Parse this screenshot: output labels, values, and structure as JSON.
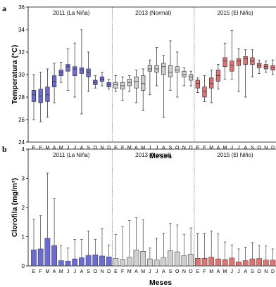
{
  "chart_data": [
    {
      "type": "boxplot",
      "panel": "a",
      "ylabel": "Temperatura (°C)",
      "xlabel": "Meses",
      "ylim": [
        24,
        36
      ],
      "yticks": [
        24,
        26,
        28,
        30,
        32,
        34,
        36
      ],
      "periods": [
        "2011 (La Niña)",
        "2013 (Normal)",
        "2015 (El Niño)"
      ],
      "colors": [
        "#6b6bd6",
        "#cfcfcf",
        "#e07272"
      ],
      "categories": [
        "E",
        "F",
        "M",
        "A",
        "M",
        "J",
        "J",
        "A",
        "S",
        "O",
        "N",
        "D",
        "E",
        "F",
        "M",
        "A",
        "M",
        "J",
        "J",
        "A",
        "S",
        "O",
        "N",
        "D",
        "E",
        "F",
        "M",
        "A",
        "M",
        "J",
        "J",
        "A",
        "S",
        "O",
        "N",
        "D"
      ],
      "boxes": [
        [
          26.0,
          27.6,
          28.2,
          28.6,
          30.0
        ],
        [
          25.8,
          27.5,
          28.1,
          28.7,
          30.2
        ],
        [
          26.2,
          27.6,
          28.2,
          28.9,
          30.5
        ],
        [
          27.5,
          28.9,
          29.4,
          29.9,
          31.0
        ],
        [
          29.3,
          29.9,
          30.2,
          30.4,
          31.1
        ],
        [
          28.6,
          30.3,
          30.7,
          30.9,
          32.3
        ],
        [
          28.0,
          29.9,
          30.5,
          30.7,
          32.8
        ],
        [
          26.5,
          30.1,
          30.4,
          30.6,
          34.0
        ],
        [
          28.5,
          29.8,
          30.2,
          30.5,
          32.0
        ],
        [
          28.8,
          29.1,
          29.3,
          29.5,
          29.9
        ],
        [
          29.0,
          29.4,
          29.6,
          29.8,
          30.2
        ],
        [
          28.7,
          28.9,
          29.1,
          29.3,
          29.6
        ],
        [
          28.5,
          28.8,
          29.1,
          29.3,
          29.9
        ],
        [
          27.7,
          28.7,
          29.0,
          29.3,
          29.8
        ],
        [
          28.5,
          29.0,
          29.3,
          29.6,
          29.9
        ],
        [
          27.5,
          28.8,
          29.4,
          29.8,
          30.4
        ],
        [
          26.8,
          28.6,
          29.2,
          29.9,
          30.5
        ],
        [
          28.2,
          30.3,
          30.5,
          30.8,
          31.3
        ],
        [
          29.0,
          30.2,
          30.5,
          30.8,
          32.4
        ],
        [
          26.2,
          30.0,
          30.7,
          31.0,
          31.7
        ],
        [
          28.6,
          29.8,
          30.2,
          30.8,
          33.0
        ],
        [
          28.0,
          30.2,
          30.4,
          30.7,
          32.0
        ],
        [
          29.0,
          29.8,
          30.0,
          30.3,
          30.6
        ],
        [
          29.0,
          29.5,
          29.8,
          30.0,
          30.3
        ],
        [
          28.4,
          28.8,
          29.2,
          29.5,
          29.7
        ],
        [
          27.6,
          28.0,
          28.5,
          28.9,
          29.9
        ],
        [
          27.5,
          28.8,
          29.2,
          29.7,
          30.4
        ],
        [
          28.7,
          29.4,
          29.9,
          30.4,
          30.9
        ],
        [
          29.6,
          30.7,
          31.2,
          31.5,
          32.8
        ],
        [
          29.6,
          30.3,
          30.8,
          31.2,
          33.9
        ],
        [
          28.5,
          30.8,
          31.2,
          31.4,
          32.3
        ],
        [
          28.0,
          30.9,
          31.4,
          31.6,
          32.2
        ],
        [
          29.8,
          30.9,
          31.2,
          31.5,
          32.2
        ],
        [
          30.1,
          30.6,
          30.8,
          31.0,
          31.3
        ],
        [
          30.2,
          30.5,
          30.7,
          30.9,
          31.2
        ],
        [
          30.0,
          30.4,
          30.6,
          30.8,
          31.3
        ]
      ]
    },
    {
      "type": "bar",
      "panel": "b",
      "ylabel": "Clorofila (mg/m³)",
      "xlabel": "Meses",
      "ylim": [
        0,
        4
      ],
      "yticks": [
        0,
        1,
        2,
        3,
        4
      ],
      "periods": [
        "2011 (La Niña)",
        "2013 (Normal)",
        "2015 (El Niño)"
      ],
      "colors": [
        "#6b6bd6",
        "#cfcfcf",
        "#e07272"
      ],
      "categories": [
        "E",
        "F",
        "M",
        "A",
        "M",
        "J",
        "J",
        "A",
        "S",
        "O",
        "N",
        "D",
        "E",
        "F",
        "M",
        "A",
        "M",
        "J",
        "J",
        "A",
        "S",
        "O",
        "N",
        "D",
        "E",
        "F",
        "M",
        "A",
        "M",
        "J",
        "J",
        "A",
        "S",
        "O",
        "N",
        "D"
      ],
      "values": [
        0.55,
        0.58,
        0.95,
        0.7,
        0.18,
        0.16,
        0.24,
        0.28,
        0.36,
        0.38,
        0.34,
        0.31,
        0.26,
        0.22,
        0.3,
        0.55,
        0.5,
        0.24,
        0.2,
        0.28,
        0.52,
        0.48,
        0.35,
        0.4,
        0.26,
        0.26,
        0.3,
        0.24,
        0.22,
        0.27,
        0.14,
        0.18,
        0.24,
        0.25,
        0.2,
        0.2
      ],
      "errors": [
        1.6,
        1.72,
        3.18,
        2.3,
        0.7,
        0.62,
        0.9,
        0.9,
        1.2,
        0.9,
        1.28,
        0.72,
        1.08,
        1.35,
        1.55,
        1.65,
        1.58,
        0.62,
        0.95,
        1.12,
        1.45,
        1.4,
        1.08,
        1.3,
        1.12,
        1.12,
        1.2,
        1.1,
        0.82,
        0.72,
        0.58,
        0.64,
        0.8,
        0.7,
        0.68,
        0.58
      ]
    }
  ]
}
